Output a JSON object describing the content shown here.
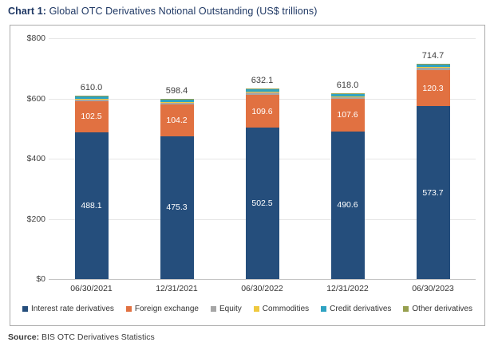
{
  "title": {
    "prefix": "Chart 1:",
    "text": " Global OTC Derivatives Notional Outstanding (US$ trillions)"
  },
  "source": {
    "label": "Source:",
    "text": " BIS OTC Derivatives Statistics"
  },
  "chart_data": {
    "type": "bar",
    "stacked": true,
    "title": "Chart 1: Global OTC Derivatives Notional Outstanding (US$ trillions)",
    "xlabel": "",
    "ylabel": "",
    "ylim": [
      0,
      800
    ],
    "ytick_step": 200,
    "yticks": [
      "$0",
      "$200",
      "$400",
      "$600",
      "$800"
    ],
    "grid": true,
    "legend_position": "bottom",
    "categories": [
      "06/30/2021",
      "12/31/2021",
      "06/30/2022",
      "12/31/2022",
      "06/30/2023"
    ],
    "series": [
      {
        "name": "Interest rate derivatives",
        "color": "#254E7C",
        "labeled": true,
        "values": [
          488.1,
          475.3,
          502.5,
          490.6,
          573.7
        ]
      },
      {
        "name": "Foreign exchange",
        "color": "#E17141",
        "labeled": true,
        "values": [
          102.5,
          104.2,
          109.6,
          107.6,
          120.3
        ]
      },
      {
        "name": "Equity",
        "color": "#A6A6A6",
        "labeled": false,
        "values": [
          7.0,
          7.0,
          7.0,
          7.0,
          7.5
        ]
      },
      {
        "name": "Commodities",
        "color": "#EFC93F",
        "labeled": false,
        "values": [
          2.2,
          2.0,
          2.7,
          2.5,
          2.5
        ]
      },
      {
        "name": "Credit derivatives",
        "color": "#2FA3C2",
        "labeled": false,
        "values": [
          9.0,
          8.7,
          9.3,
          9.3,
          9.5
        ]
      },
      {
        "name": "Other derivatives",
        "color": "#97A04F",
        "labeled": false,
        "values": [
          1.2,
          1.2,
          1.0,
          1.0,
          1.2
        ]
      }
    ],
    "totals": [
      610.0,
      598.4,
      632.1,
      618.0,
      714.7
    ],
    "total_labels": [
      "610.0",
      "598.4",
      "632.1",
      "618.0",
      "714.7"
    ]
  }
}
